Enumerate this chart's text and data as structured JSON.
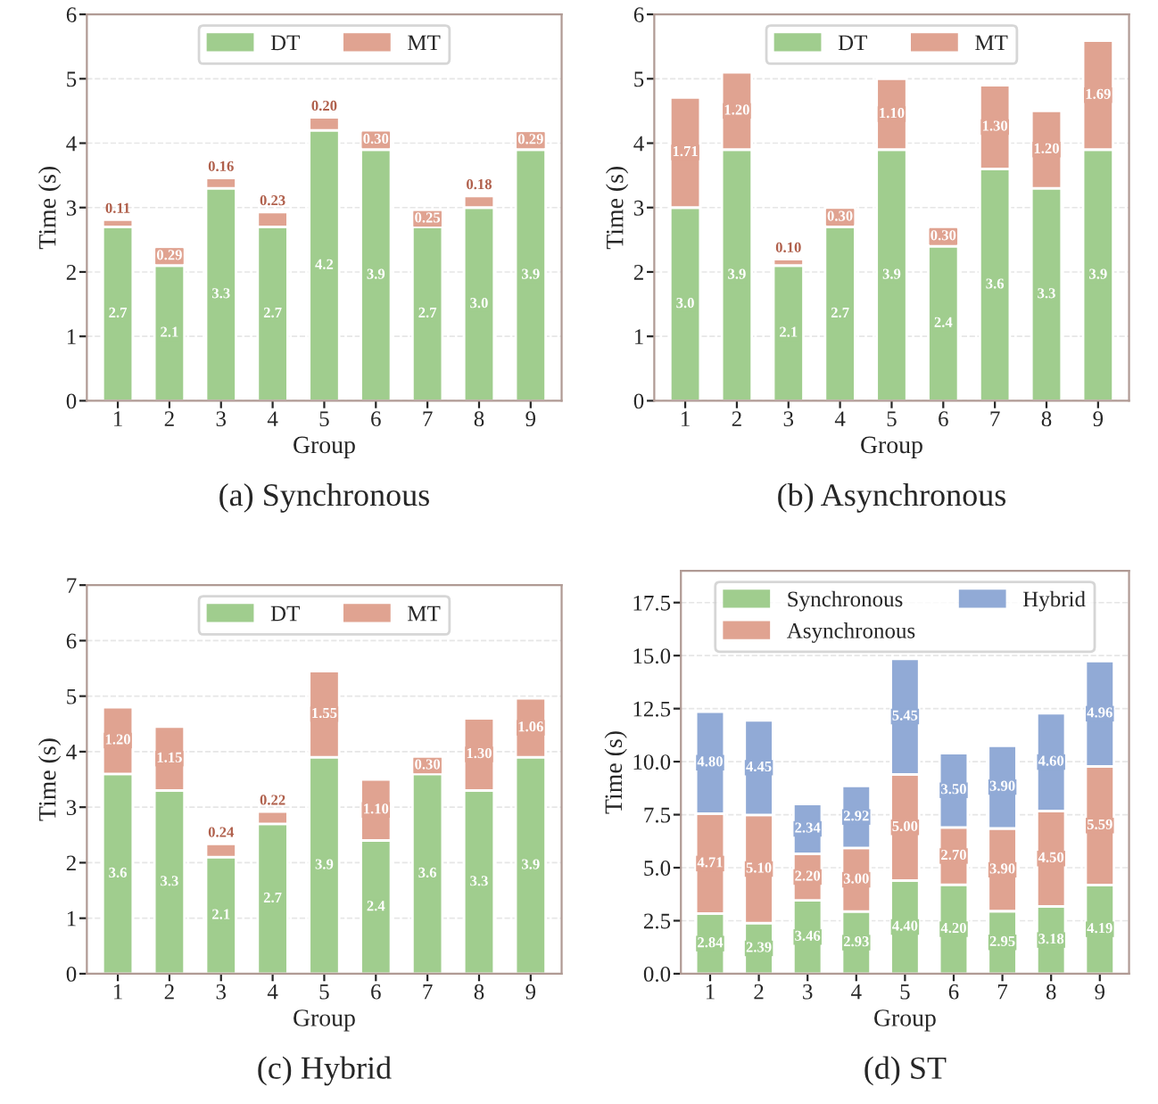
{
  "chart_data": [
    {
      "type": "bar",
      "title": "(a) Synchronous",
      "xlabel": "Group",
      "ylabel": "Time (s)",
      "categories": [
        "1",
        "2",
        "3",
        "4",
        "5",
        "6",
        "7",
        "8",
        "9"
      ],
      "stacked": true,
      "ylim": [
        0,
        6
      ],
      "yticks": [
        0,
        1,
        2,
        3,
        4,
        5,
        6
      ],
      "grid": "y",
      "legend": "top",
      "series": [
        {
          "name": "DT",
          "color": "#a0cd8e",
          "values": [
            2.7,
            2.1,
            3.3,
            2.7,
            4.2,
            3.9,
            2.7,
            3.0,
            3.9
          ],
          "value_labels": [
            "2.7",
            "2.1",
            "3.3",
            "2.7",
            "4.2",
            "3.9",
            "2.7",
            "3.0",
            "3.9"
          ]
        },
        {
          "name": "MT",
          "color": "#e0a391",
          "values": [
            0.11,
            0.29,
            0.16,
            0.23,
            0.2,
            0.3,
            0.25,
            0.18,
            0.29
          ],
          "value_labels": [
            "0.11",
            "0.29",
            "0.16",
            "0.23",
            "0.20",
            "0.30",
            "0.25",
            "0.18",
            "0.29"
          ]
        }
      ]
    },
    {
      "type": "bar",
      "title": "(b) Asynchronous",
      "xlabel": "Group",
      "ylabel": "Time (s)",
      "categories": [
        "1",
        "2",
        "3",
        "4",
        "5",
        "6",
        "7",
        "8",
        "9"
      ],
      "stacked": true,
      "ylim": [
        0,
        6
      ],
      "yticks": [
        0,
        1,
        2,
        3,
        4,
        5,
        6
      ],
      "grid": "y",
      "legend": "top",
      "series": [
        {
          "name": "DT",
          "color": "#a0cd8e",
          "values": [
            3.0,
            3.9,
            2.1,
            2.7,
            3.9,
            2.4,
            3.6,
            3.3,
            3.9
          ],
          "value_labels": [
            "3.0",
            "3.9",
            "2.1",
            "2.7",
            "3.9",
            "2.4",
            "3.6",
            "3.3",
            "3.9"
          ]
        },
        {
          "name": "MT",
          "color": "#e0a391",
          "values": [
            1.71,
            1.2,
            0.1,
            0.3,
            1.1,
            0.3,
            1.3,
            1.2,
            1.69
          ],
          "value_labels": [
            "1.71",
            "1.20",
            "0.10",
            "0.30",
            "1.10",
            "0.30",
            "1.30",
            "1.20",
            "1.69"
          ]
        }
      ]
    },
    {
      "type": "bar",
      "title": "(c) Hybrid",
      "xlabel": "Group",
      "ylabel": "Time (s)",
      "categories": [
        "1",
        "2",
        "3",
        "4",
        "5",
        "6",
        "7",
        "8",
        "9"
      ],
      "stacked": true,
      "ylim": [
        0,
        7
      ],
      "yticks": [
        0,
        1,
        2,
        3,
        4,
        5,
        6,
        7
      ],
      "grid": "y",
      "legend": "top",
      "series": [
        {
          "name": "DT",
          "color": "#a0cd8e",
          "values": [
            3.6,
            3.3,
            2.1,
            2.7,
            3.9,
            2.4,
            3.6,
            3.3,
            3.9
          ],
          "value_labels": [
            "3.6",
            "3.3",
            "2.1",
            "2.7",
            "3.9",
            "2.4",
            "3.6",
            "3.3",
            "3.9"
          ]
        },
        {
          "name": "MT",
          "color": "#e0a391",
          "values": [
            1.2,
            1.15,
            0.24,
            0.22,
            1.55,
            1.1,
            0.3,
            1.3,
            1.06
          ],
          "value_labels": [
            "1.20",
            "1.15",
            "0.24",
            "0.22",
            "1.55",
            "1.10",
            "0.30",
            "1.30",
            "1.06"
          ]
        }
      ]
    },
    {
      "type": "bar",
      "title": "(d) ST",
      "xlabel": "Group",
      "ylabel": "Time (s)",
      "categories": [
        "1",
        "2",
        "3",
        "4",
        "5",
        "6",
        "7",
        "8",
        "9"
      ],
      "stacked": true,
      "ylim": [
        0,
        19
      ],
      "yticks": [
        {
          "value": 0,
          "label": "0.0"
        },
        {
          "value": 2.5,
          "label": "2.5"
        },
        {
          "value": 5,
          "label": "5.0"
        },
        {
          "value": 7.5,
          "label": "7.5"
        },
        {
          "value": 10,
          "label": "10.0"
        },
        {
          "value": 12.5,
          "label": "12.5"
        },
        {
          "value": 15,
          "label": "15.0"
        },
        {
          "value": 17.5,
          "label": "17.5"
        }
      ],
      "grid": "y",
      "legend": "top",
      "series": [
        {
          "name": "Synchronous",
          "color": "#a0cd8e",
          "values": [
            2.84,
            2.39,
            3.46,
            2.93,
            4.4,
            4.2,
            2.95,
            3.18,
            4.19
          ],
          "value_labels": [
            "2.84",
            "2.39",
            "3.46",
            "2.93",
            "4.40",
            "4.20",
            "2.95",
            "3.18",
            "4.19"
          ]
        },
        {
          "name": "Asynchronous",
          "color": "#e0a391",
          "values": [
            4.71,
            5.1,
            2.2,
            3.0,
            5.0,
            2.7,
            3.9,
            4.5,
            5.59
          ],
          "value_labels": [
            "4.71",
            "5.10",
            "2.20",
            "3.00",
            "5.00",
            "2.70",
            "3.90",
            "4.50",
            "5.59"
          ]
        },
        {
          "name": "Hybrid",
          "color": "#91aad6",
          "values": [
            4.8,
            4.45,
            2.34,
            2.92,
            5.45,
            3.5,
            3.9,
            4.6,
            4.96
          ],
          "value_labels": [
            "4.80",
            "4.45",
            "2.34",
            "2.92",
            "5.45",
            "3.50",
            "3.90",
            "4.60",
            "4.96"
          ]
        }
      ]
    }
  ]
}
